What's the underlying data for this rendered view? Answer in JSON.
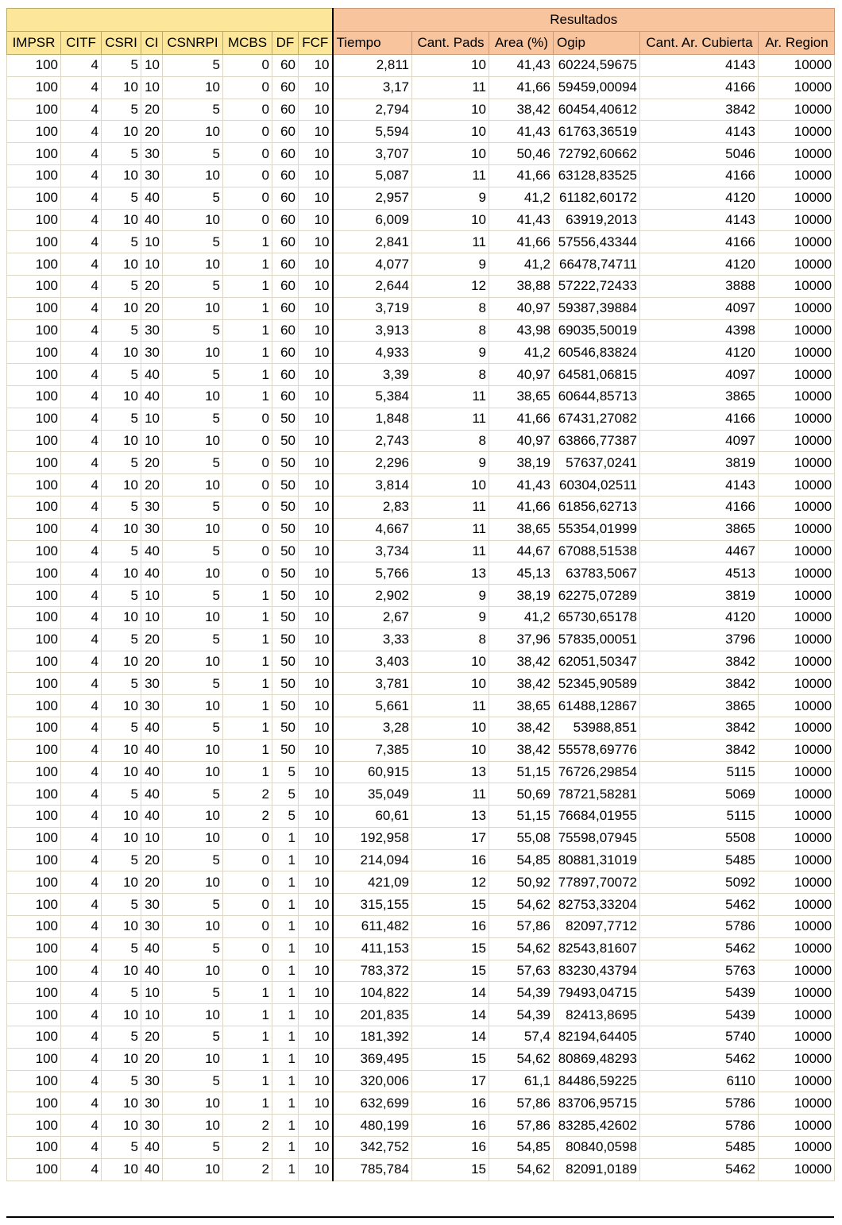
{
  "group_header": "Resultados",
  "columns": [
    "IMPSR",
    "CITF",
    "CSRI",
    "CI",
    "CSNRPI",
    "MCBS",
    "DF",
    "FCF",
    "Tiempo",
    "Cant. Pads",
    "Area (%)",
    "Ogip",
    "Cant. Ar. Cubierta",
    "Ar. Region"
  ],
  "rows": [
    [
      "100",
      "4",
      "5",
      "10",
      "5",
      "0",
      "60",
      "10",
      "2,811",
      "10",
      "41,43",
      "60224,59675",
      "4143",
      "10000"
    ],
    [
      "100",
      "4",
      "10",
      "10",
      "10",
      "0",
      "60",
      "10",
      "3,17",
      "11",
      "41,66",
      "59459,00094",
      "4166",
      "10000"
    ],
    [
      "100",
      "4",
      "5",
      "20",
      "5",
      "0",
      "60",
      "10",
      "2,794",
      "10",
      "38,42",
      "60454,40612",
      "3842",
      "10000"
    ],
    [
      "100",
      "4",
      "10",
      "20",
      "10",
      "0",
      "60",
      "10",
      "5,594",
      "10",
      "41,43",
      "61763,36519",
      "4143",
      "10000"
    ],
    [
      "100",
      "4",
      "5",
      "30",
      "5",
      "0",
      "60",
      "10",
      "3,707",
      "10",
      "50,46",
      "72792,60662",
      "5046",
      "10000"
    ],
    [
      "100",
      "4",
      "10",
      "30",
      "10",
      "0",
      "60",
      "10",
      "5,087",
      "11",
      "41,66",
      "63128,83525",
      "4166",
      "10000"
    ],
    [
      "100",
      "4",
      "5",
      "40",
      "5",
      "0",
      "60",
      "10",
      "2,957",
      "9",
      "41,2",
      "61182,60172",
      "4120",
      "10000"
    ],
    [
      "100",
      "4",
      "10",
      "40",
      "10",
      "0",
      "60",
      "10",
      "6,009",
      "10",
      "41,43",
      "63919,2013",
      "4143",
      "10000"
    ],
    [
      "100",
      "4",
      "5",
      "10",
      "5",
      "1",
      "60",
      "10",
      "2,841",
      "11",
      "41,66",
      "57556,43344",
      "4166",
      "10000"
    ],
    [
      "100",
      "4",
      "10",
      "10",
      "10",
      "1",
      "60",
      "10",
      "4,077",
      "9",
      "41,2",
      "66478,74711",
      "4120",
      "10000"
    ],
    [
      "100",
      "4",
      "5",
      "20",
      "5",
      "1",
      "60",
      "10",
      "2,644",
      "12",
      "38,88",
      "57222,72433",
      "3888",
      "10000"
    ],
    [
      "100",
      "4",
      "10",
      "20",
      "10",
      "1",
      "60",
      "10",
      "3,719",
      "8",
      "40,97",
      "59387,39884",
      "4097",
      "10000"
    ],
    [
      "100",
      "4",
      "5",
      "30",
      "5",
      "1",
      "60",
      "10",
      "3,913",
      "8",
      "43,98",
      "69035,50019",
      "4398",
      "10000"
    ],
    [
      "100",
      "4",
      "10",
      "30",
      "10",
      "1",
      "60",
      "10",
      "4,933",
      "9",
      "41,2",
      "60546,83824",
      "4120",
      "10000"
    ],
    [
      "100",
      "4",
      "5",
      "40",
      "5",
      "1",
      "60",
      "10",
      "3,39",
      "8",
      "40,97",
      "64581,06815",
      "4097",
      "10000"
    ],
    [
      "100",
      "4",
      "10",
      "40",
      "10",
      "1",
      "60",
      "10",
      "5,384",
      "11",
      "38,65",
      "60644,85713",
      "3865",
      "10000"
    ],
    [
      "100",
      "4",
      "5",
      "10",
      "5",
      "0",
      "50",
      "10",
      "1,848",
      "11",
      "41,66",
      "67431,27082",
      "4166",
      "10000"
    ],
    [
      "100",
      "4",
      "10",
      "10",
      "10",
      "0",
      "50",
      "10",
      "2,743",
      "8",
      "40,97",
      "63866,77387",
      "4097",
      "10000"
    ],
    [
      "100",
      "4",
      "5",
      "20",
      "5",
      "0",
      "50",
      "10",
      "2,296",
      "9",
      "38,19",
      "57637,0241",
      "3819",
      "10000"
    ],
    [
      "100",
      "4",
      "10",
      "20",
      "10",
      "0",
      "50",
      "10",
      "3,814",
      "10",
      "41,43",
      "60304,02511",
      "4143",
      "10000"
    ],
    [
      "100",
      "4",
      "5",
      "30",
      "5",
      "0",
      "50",
      "10",
      "2,83",
      "11",
      "41,66",
      "61856,62713",
      "4166",
      "10000"
    ],
    [
      "100",
      "4",
      "10",
      "30",
      "10",
      "0",
      "50",
      "10",
      "4,667",
      "11",
      "38,65",
      "55354,01999",
      "3865",
      "10000"
    ],
    [
      "100",
      "4",
      "5",
      "40",
      "5",
      "0",
      "50",
      "10",
      "3,734",
      "11",
      "44,67",
      "67088,51538",
      "4467",
      "10000"
    ],
    [
      "100",
      "4",
      "10",
      "40",
      "10",
      "0",
      "50",
      "10",
      "5,766",
      "13",
      "45,13",
      "63783,5067",
      "4513",
      "10000"
    ],
    [
      "100",
      "4",
      "5",
      "10",
      "5",
      "1",
      "50",
      "10",
      "2,902",
      "9",
      "38,19",
      "62275,07289",
      "3819",
      "10000"
    ],
    [
      "100",
      "4",
      "10",
      "10",
      "10",
      "1",
      "50",
      "10",
      "2,67",
      "9",
      "41,2",
      "65730,65178",
      "4120",
      "10000"
    ],
    [
      "100",
      "4",
      "5",
      "20",
      "5",
      "1",
      "50",
      "10",
      "3,33",
      "8",
      "37,96",
      "57835,00051",
      "3796",
      "10000"
    ],
    [
      "100",
      "4",
      "10",
      "20",
      "10",
      "1",
      "50",
      "10",
      "3,403",
      "10",
      "38,42",
      "62051,50347",
      "3842",
      "10000"
    ],
    [
      "100",
      "4",
      "5",
      "30",
      "5",
      "1",
      "50",
      "10",
      "3,781",
      "10",
      "38,42",
      "52345,90589",
      "3842",
      "10000"
    ],
    [
      "100",
      "4",
      "10",
      "30",
      "10",
      "1",
      "50",
      "10",
      "5,661",
      "11",
      "38,65",
      "61488,12867",
      "3865",
      "10000"
    ],
    [
      "100",
      "4",
      "5",
      "40",
      "5",
      "1",
      "50",
      "10",
      "3,28",
      "10",
      "38,42",
      "53988,851",
      "3842",
      "10000"
    ],
    [
      "100",
      "4",
      "10",
      "40",
      "10",
      "1",
      "50",
      "10",
      "7,385",
      "10",
      "38,42",
      "55578,69776",
      "3842",
      "10000"
    ],
    [
      "100",
      "4",
      "10",
      "40",
      "10",
      "1",
      "5",
      "10",
      "60,915",
      "13",
      "51,15",
      "76726,29854",
      "5115",
      "10000"
    ],
    [
      "100",
      "4",
      "5",
      "40",
      "5",
      "2",
      "5",
      "10",
      "35,049",
      "11",
      "50,69",
      "78721,58281",
      "5069",
      "10000"
    ],
    [
      "100",
      "4",
      "10",
      "40",
      "10",
      "2",
      "5",
      "10",
      "60,61",
      "13",
      "51,15",
      "76684,01955",
      "5115",
      "10000"
    ],
    [
      "100",
      "4",
      "10",
      "10",
      "10",
      "0",
      "1",
      "10",
      "192,958",
      "17",
      "55,08",
      "75598,07945",
      "5508",
      "10000"
    ],
    [
      "100",
      "4",
      "5",
      "20",
      "5",
      "0",
      "1",
      "10",
      "214,094",
      "16",
      "54,85",
      "80881,31019",
      "5485",
      "10000"
    ],
    [
      "100",
      "4",
      "10",
      "20",
      "10",
      "0",
      "1",
      "10",
      "421,09",
      "12",
      "50,92",
      "77897,70072",
      "5092",
      "10000"
    ],
    [
      "100",
      "4",
      "5",
      "30",
      "5",
      "0",
      "1",
      "10",
      "315,155",
      "15",
      "54,62",
      "82753,33204",
      "5462",
      "10000"
    ],
    [
      "100",
      "4",
      "10",
      "30",
      "10",
      "0",
      "1",
      "10",
      "611,482",
      "16",
      "57,86",
      "82097,7712",
      "5786",
      "10000"
    ],
    [
      "100",
      "4",
      "5",
      "40",
      "5",
      "0",
      "1",
      "10",
      "411,153",
      "15",
      "54,62",
      "82543,81607",
      "5462",
      "10000"
    ],
    [
      "100",
      "4",
      "10",
      "40",
      "10",
      "0",
      "1",
      "10",
      "783,372",
      "15",
      "57,63",
      "83230,43794",
      "5763",
      "10000"
    ],
    [
      "100",
      "4",
      "5",
      "10",
      "5",
      "1",
      "1",
      "10",
      "104,822",
      "14",
      "54,39",
      "79493,04715",
      "5439",
      "10000"
    ],
    [
      "100",
      "4",
      "10",
      "10",
      "10",
      "1",
      "1",
      "10",
      "201,835",
      "14",
      "54,39",
      "82413,8695",
      "5439",
      "10000"
    ],
    [
      "100",
      "4",
      "5",
      "20",
      "5",
      "1",
      "1",
      "10",
      "181,392",
      "14",
      "57,4",
      "82194,64405",
      "5740",
      "10000"
    ],
    [
      "100",
      "4",
      "10",
      "20",
      "10",
      "1",
      "1",
      "10",
      "369,495",
      "15",
      "54,62",
      "80869,48293",
      "5462",
      "10000"
    ],
    [
      "100",
      "4",
      "5",
      "30",
      "5",
      "1",
      "1",
      "10",
      "320,006",
      "17",
      "61,1",
      "84486,59225",
      "6110",
      "10000"
    ],
    [
      "100",
      "4",
      "10",
      "30",
      "10",
      "1",
      "1",
      "10",
      "632,699",
      "16",
      "57,86",
      "83706,95715",
      "5786",
      "10000"
    ],
    [
      "100",
      "4",
      "10",
      "30",
      "10",
      "2",
      "1",
      "10",
      "480,199",
      "16",
      "57,86",
      "83285,42602",
      "5786",
      "10000"
    ],
    [
      "100",
      "4",
      "5",
      "40",
      "5",
      "2",
      "1",
      "10",
      "342,752",
      "16",
      "54,85",
      "80840,0598",
      "5485",
      "10000"
    ],
    [
      "100",
      "4",
      "10",
      "40",
      "10",
      "2",
      "1",
      "10",
      "785,784",
      "15",
      "54,62",
      "82091,0189",
      "5462",
      "10000"
    ]
  ]
}
